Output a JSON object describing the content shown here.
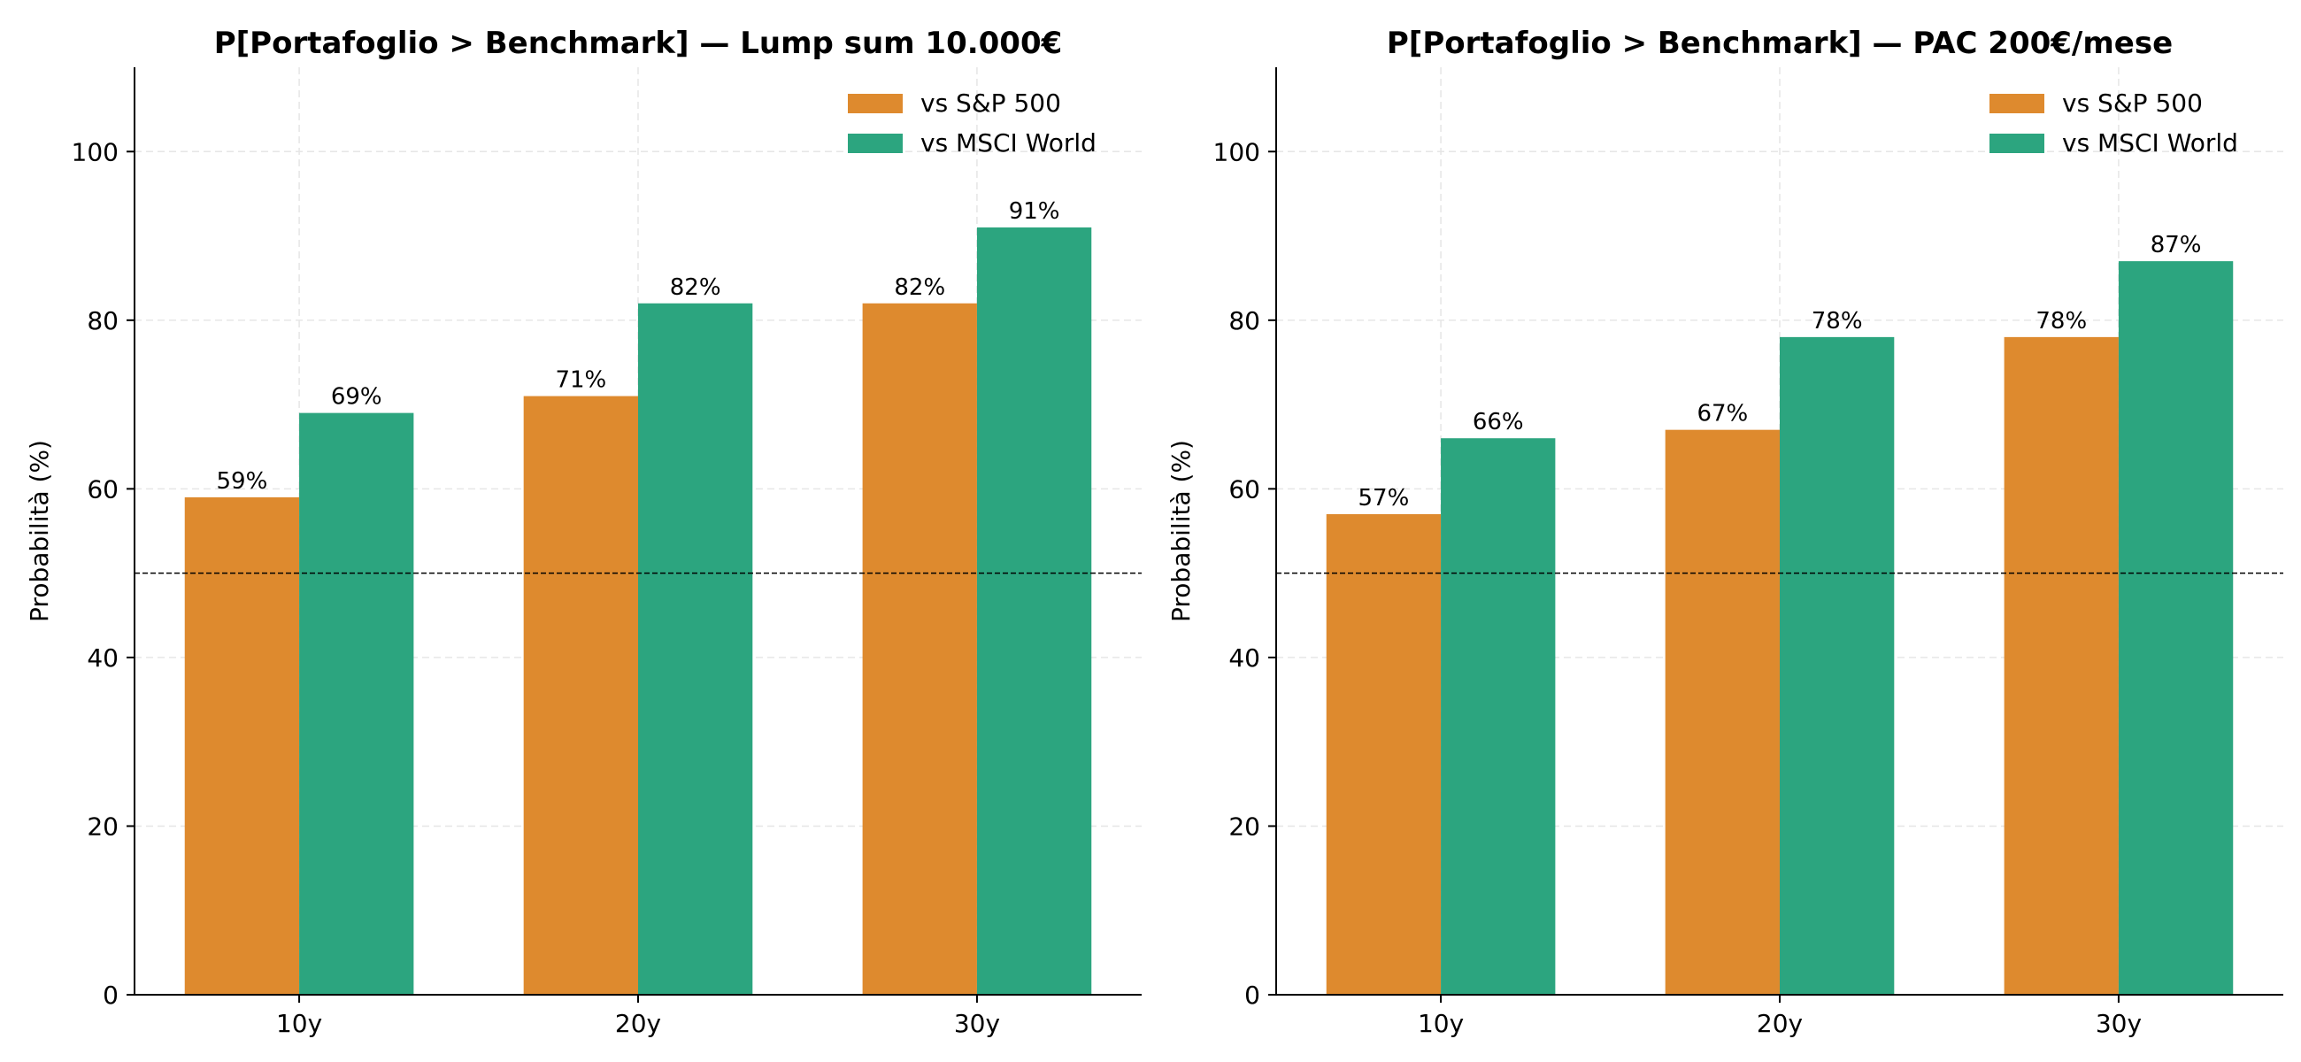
{
  "colors": {
    "sp500": "#DE8A2E",
    "msci": "#2CA57F",
    "grid": "#e6e6e6",
    "axis": "#000000"
  },
  "chart_data": [
    {
      "type": "bar",
      "title": "P[Portafoglio > Benchmark] — Lump sum 10.000€",
      "xlabel": "",
      "ylabel": "Probabilità (%)",
      "ylim": [
        0,
        110
      ],
      "yticks": [
        0,
        20,
        40,
        60,
        80,
        100
      ],
      "reference_line": 50,
      "grid": true,
      "legend": "top-right",
      "categories": [
        "10y",
        "20y",
        "30y"
      ],
      "series": [
        {
          "name": "vs S&P 500",
          "color": "#DE8A2E",
          "values": [
            59,
            71,
            82
          ],
          "labels": [
            "59%",
            "71%",
            "82%"
          ]
        },
        {
          "name": "vs MSCI World",
          "color": "#2CA57F",
          "values": [
            69,
            82,
            91
          ],
          "labels": [
            "69%",
            "82%",
            "91%"
          ]
        }
      ]
    },
    {
      "type": "bar",
      "title": "P[Portafoglio > Benchmark] — PAC 200€/mese",
      "xlabel": "",
      "ylabel": "Probabilità (%)",
      "ylim": [
        0,
        110
      ],
      "yticks": [
        0,
        20,
        40,
        60,
        80,
        100
      ],
      "reference_line": 50,
      "grid": true,
      "legend": "top-right",
      "categories": [
        "10y",
        "20y",
        "30y"
      ],
      "series": [
        {
          "name": "vs S&P 500",
          "color": "#DE8A2E",
          "values": [
            57,
            67,
            78
          ],
          "labels": [
            "57%",
            "67%",
            "78%"
          ]
        },
        {
          "name": "vs MSCI World",
          "color": "#2CA57F",
          "values": [
            66,
            78,
            87
          ],
          "labels": [
            "66%",
            "78%",
            "87%"
          ]
        }
      ]
    }
  ]
}
